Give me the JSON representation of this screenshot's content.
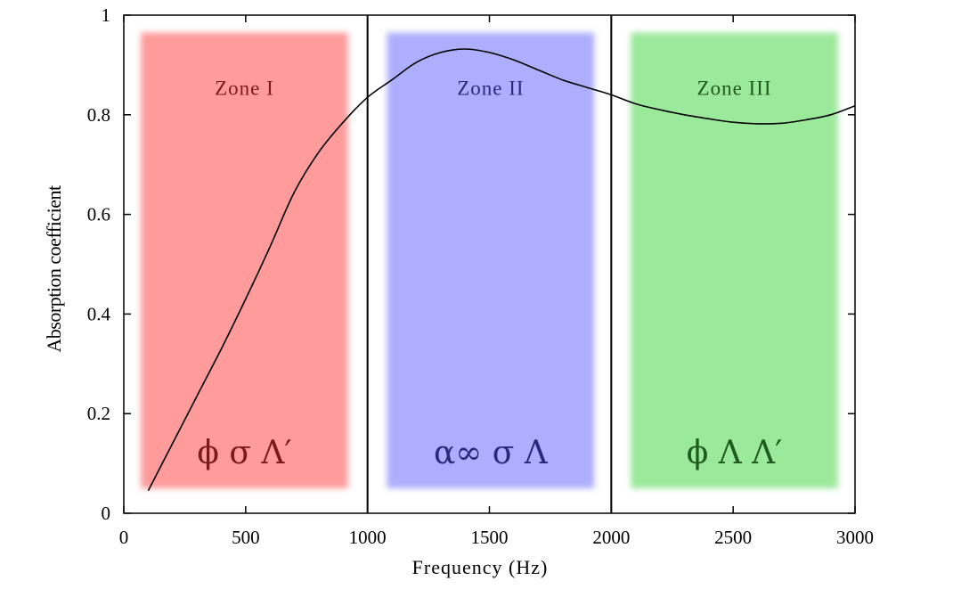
{
  "chart_data": {
    "type": "line",
    "xlabel": "Frequency (Hz)",
    "ylabel": "Absorption coefficient",
    "xlim": [
      0,
      3000
    ],
    "ylim": [
      0,
      1
    ],
    "xticks": [
      "0",
      "500",
      "1000",
      "1500",
      "2000",
      "2500",
      "3000"
    ],
    "yticks": [
      "0",
      "0.2",
      "0.4",
      "0.6",
      "0.8",
      "1"
    ],
    "grid": false,
    "vlines": [
      1000,
      2000
    ],
    "zones": [
      {
        "title": "Zone I",
        "params": "ϕ σ Λ′",
        "x_range": [
          70,
          920
        ],
        "y_range": [
          0.05,
          0.965
        ],
        "fill": "#ff9b9b",
        "text_color": "#7a1a1a"
      },
      {
        "title": "Zone II",
        "params": "α∞ σ Λ",
        "x_range": [
          1080,
          1930
        ],
        "y_range": [
          0.05,
          0.965
        ],
        "fill": "#adaefd",
        "text_color": "#2a2a7a"
      },
      {
        "title": "Zone III",
        "params": "ϕ Λ Λ′",
        "x_range": [
          2080,
          2930
        ],
        "y_range": [
          0.05,
          0.965
        ],
        "fill": "#9be99b",
        "text_color": "#1f5a1f"
      }
    ],
    "series": [
      {
        "color": "#000000",
        "x": [
          100,
          200,
          300,
          400,
          500,
          600,
          700,
          800,
          900,
          1000,
          1100,
          1200,
          1300,
          1400,
          1500,
          1600,
          1700,
          1800,
          1900,
          2000,
          2100,
          2200,
          2300,
          2400,
          2500,
          2600,
          2700,
          2800,
          2900,
          3000
        ],
        "y": [
          0.045,
          0.14,
          0.235,
          0.33,
          0.43,
          0.535,
          0.645,
          0.725,
          0.785,
          0.835,
          0.87,
          0.905,
          0.925,
          0.932,
          0.925,
          0.91,
          0.89,
          0.87,
          0.855,
          0.84,
          0.822,
          0.81,
          0.8,
          0.792,
          0.785,
          0.782,
          0.783,
          0.79,
          0.8,
          0.818
        ]
      }
    ]
  }
}
